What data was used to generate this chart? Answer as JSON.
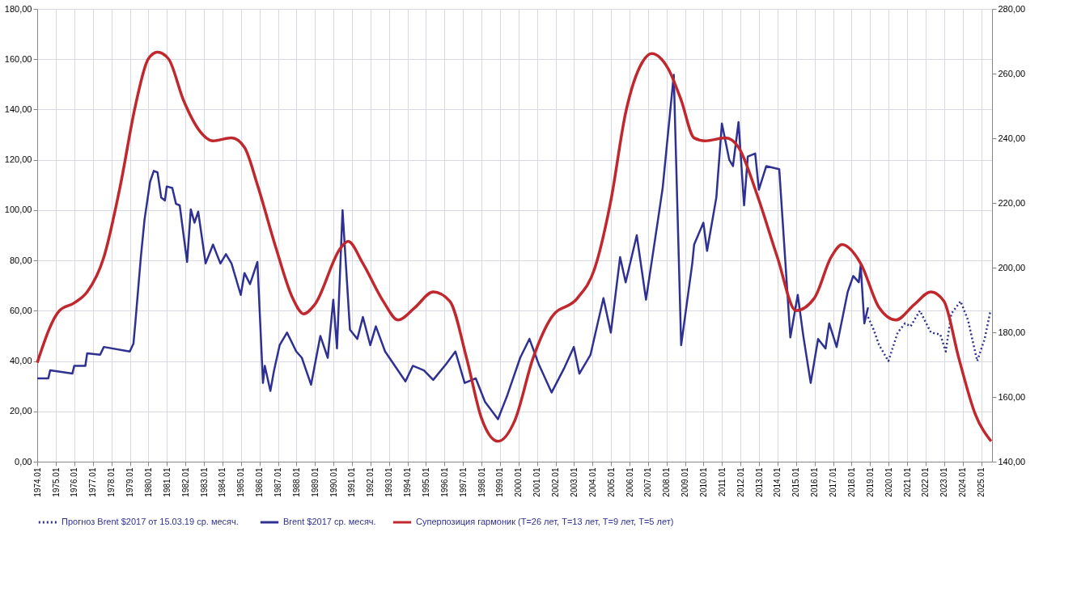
{
  "chart_data": {
    "type": "line",
    "legend": "bottom",
    "grid": true,
    "xlim": [
      1974,
      2025.6
    ],
    "xticks": [
      1974.01,
      1975.01,
      1976.01,
      1977.01,
      1978.01,
      1979.01,
      1980.01,
      1981.01,
      1982.01,
      1983.01,
      1984.01,
      1985.01,
      1986.01,
      1987.01,
      1988.01,
      1989.01,
      1990.01,
      1991.01,
      1992.01,
      1993.01,
      1994.01,
      1995.01,
      1996.01,
      1997.01,
      1998.01,
      1999.01,
      2000.01,
      2001.01,
      2002.01,
      2003.01,
      2004.01,
      2005.01,
      2006.01,
      2007.01,
      2008.01,
      2009.01,
      2010.01,
      2011.01,
      2012.01,
      2013.01,
      2014.01,
      2015.01,
      2016.01,
      2017.01,
      2018.01,
      2019.01,
      2020.01,
      2021.01,
      2022.01,
      2023.01,
      2024.01,
      2025.01
    ],
    "ylim": [
      0,
      180
    ],
    "yticks": [
      {
        "value": 0,
        "label": "0,00"
      },
      {
        "value": 20,
        "label": "20,00"
      },
      {
        "value": 40,
        "label": "40,00"
      },
      {
        "value": 60,
        "label": "60,00"
      },
      {
        "value": 80,
        "label": "80,00"
      },
      {
        "value": 100,
        "label": "100,00"
      },
      {
        "value": 120,
        "label": "120,00"
      },
      {
        "value": 140,
        "label": "140,00"
      },
      {
        "value": 160,
        "label": "160,00"
      },
      {
        "value": 180,
        "label": "180,00"
      }
    ],
    "y2lim": [
      140,
      280
    ],
    "y2ticks": [
      {
        "value": 140,
        "label": "140,00"
      },
      {
        "value": 160,
        "label": "160,00"
      },
      {
        "value": 180,
        "label": "180,00"
      },
      {
        "value": 200,
        "label": "200,00"
      },
      {
        "value": 220,
        "label": "220,00"
      },
      {
        "value": 240,
        "label": "240,00"
      },
      {
        "value": 260,
        "label": "260,00"
      },
      {
        "value": 280,
        "label": "280,00"
      }
    ],
    "series": [
      {
        "name": "Прогноз Brent  $2017 от  15.03.19 ср. месяч.",
        "color": "#2e3192",
        "line_style": "dotted",
        "x": [
          2018.9,
          2019.2,
          2019.5,
          2020.0,
          2020.5,
          2020.9,
          2021.2,
          2021.7,
          2022.3,
          2022.8,
          2023.1,
          2023.4,
          2023.9,
          2024.3,
          2024.8,
          2025.2,
          2025.5
        ],
        "values": [
          57.5,
          52.5,
          46.3,
          40,
          51.3,
          55,
          53.8,
          60,
          51.3,
          50.6,
          43.8,
          58.8,
          63.8,
          56.3,
          40,
          48.8,
          59.4
        ]
      },
      {
        "name": "Brent $2017 ср. месяч.",
        "color": "#2e3192",
        "line_style": "solid",
        "x": [
          1974.0,
          1974.6,
          1974.7,
          1975.9,
          1976.0,
          1976.6,
          1976.7,
          1977.4,
          1977.6,
          1979.0,
          1979.2,
          1979.3,
          1979.6,
          1979.8,
          1980.1,
          1980.3,
          1980.5,
          1980.7,
          1980.9,
          1981.0,
          1981.3,
          1981.5,
          1981.7,
          1982.1,
          1982.3,
          1982.5,
          1982.7,
          1983.1,
          1983.5,
          1983.9,
          1984.2,
          1984.5,
          1985.0,
          1985.2,
          1985.5,
          1985.9,
          1986.2,
          1986.3,
          1986.6,
          1986.8,
          1987.1,
          1987.5,
          1988.0,
          1988.3,
          1988.8,
          1989.3,
          1989.7,
          1990.0,
          1990.2,
          1990.5,
          1990.9,
          1991.3,
          1991.6,
          1992.0,
          1992.3,
          1992.8,
          1993.9,
          1994.3,
          1994.9,
          1995.4,
          1996.1,
          1996.6,
          1997.1,
          1997.7,
          1998.2,
          1998.9,
          1999.4,
          2000.1,
          2000.6,
          2001.1,
          2001.8,
          2002.5,
          2003.0,
          2003.3,
          2003.9,
          2004.6,
          2005.0,
          2005.5,
          2005.8,
          2006.4,
          2006.9,
          2007.5,
          2007.8,
          2008.4,
          2008.8,
          2009.4,
          2009.5,
          2010.0,
          2010.2,
          2010.7,
          2011.0,
          2011.4,
          2011.6,
          2011.9,
          2012.2,
          2012.4,
          2012.8,
          2013.0,
          2013.4,
          2014.1,
          2014.7,
          2015.1,
          2015.4,
          2015.8,
          2016.2,
          2016.6,
          2016.8,
          2017.2,
          2017.8,
          2018.1,
          2018.4,
          2018.5,
          2018.7,
          2018.9
        ],
        "values": [
          33.1,
          33.1,
          36.3,
          35,
          38.1,
          38.1,
          43.1,
          42.5,
          45.6,
          43.8,
          46.9,
          55,
          81.3,
          96.3,
          111.3,
          115.6,
          115,
          105,
          103.8,
          109.4,
          108.8,
          102.5,
          101.9,
          79.4,
          100.3,
          95,
          99.4,
          78.8,
          86.3,
          78.8,
          82.5,
          78.8,
          66.3,
          75,
          70.6,
          79.4,
          31.3,
          38.1,
          28.1,
          36.3,
          46.3,
          51.3,
          43.8,
          41.3,
          30.6,
          50,
          41.3,
          64.4,
          45,
          100,
          52.5,
          48.8,
          57.5,
          46.3,
          53.8,
          43.8,
          31.9,
          38.1,
          36.3,
          32.5,
          38.8,
          43.8,
          31.3,
          33.1,
          23.8,
          16.9,
          26.3,
          41.3,
          48.8,
          38.8,
          27.5,
          37.5,
          45.6,
          35,
          42.5,
          65,
          51.3,
          81.3,
          71.3,
          90,
          64.4,
          93.8,
          108.8,
          153.8,
          46.3,
          78.8,
          86.3,
          95,
          83.8,
          105,
          134.4,
          120,
          117.5,
          135,
          101.9,
          121.3,
          122.5,
          108.1,
          117.5,
          116.3,
          49.4,
          66.3,
          50,
          31.3,
          48.8,
          45,
          55,
          45.6,
          67.5,
          73.8,
          71.3,
          78.1,
          55,
          61.3
        ]
      },
      {
        "name": "Суперпозиция гармоник (Т=26 лет, Т=13 лет, Т=9 лет, Т=5 лет)",
        "color": "#c0282d",
        "line_style": "solid",
        "axis": "y2",
        "x": [
          1974.0,
          1975.2,
          1976.0,
          1976.7,
          1977.6,
          1978.5,
          1979.3,
          1980.0,
          1980.5,
          1981.1,
          1981.9,
          1982.8,
          1983.5,
          1984.5,
          1985.2,
          1985.9,
          1986.9,
          1987.8,
          1988.4,
          1989.0,
          1990.4,
          1990.8,
          1991.6,
          1992.7,
          1993.5,
          1994.4,
          1995.4,
          1996.3,
          1997.2,
          1998.0,
          1998.9,
          1999.8,
          2000.8,
          2001.8,
          2003.2,
          2004.1,
          2005.0,
          2005.8,
          2006.7,
          2007.2,
          2008.1,
          2008.8,
          2009.5,
          2010.1,
          2011.2,
          2011.9,
          2012.9,
          2014.0,
          2015.0,
          2016.0,
          2016.9,
          2017.5,
          2018.5,
          2019.5,
          2020.4,
          2021.4,
          2022.3,
          2023.0,
          2023.8,
          2024.7,
          2025.55
        ],
        "values": [
          170.6,
          186.7,
          189.1,
          192.5,
          203.2,
          225.6,
          249.9,
          264.5,
          266.6,
          264.5,
          251.8,
          242.1,
          239.2,
          240.1,
          237.2,
          225.6,
          206.1,
          190.6,
          185.7,
          188.6,
          206.1,
          208.1,
          201.3,
          189.6,
          183.8,
          187.6,
          192.5,
          189.6,
          172.1,
          153.6,
          146.3,
          152.6,
          172.1,
          184.7,
          190.6,
          199.3,
          220.7,
          247.9,
          263.5,
          266.2,
          261.5,
          251.8,
          240.1,
          239.2,
          240.1,
          237.2,
          222.6,
          203.2,
          186.7,
          190.6,
          203.2,
          207.1,
          201.3,
          187.6,
          183.8,
          188.6,
          192.5,
          189.6,
          172.1,
          154.6,
          146.3
        ]
      }
    ]
  }
}
